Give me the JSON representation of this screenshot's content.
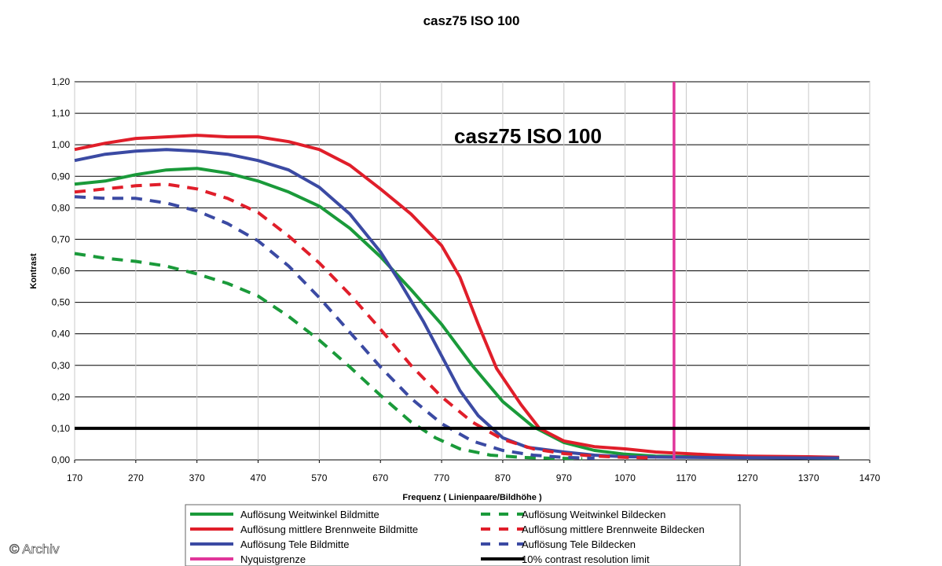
{
  "chart_data": {
    "type": "line",
    "title": "casz75 ISO 100",
    "inner_title": "casz75 ISO 100",
    "xlabel": "Frequenz ( Linienpaare/Bildhöhe )",
    "ylabel": "Kontrast",
    "xlim": [
      170,
      1470
    ],
    "ylim": [
      0,
      1.2
    ],
    "x_ticks": [
      "170",
      "270",
      "370",
      "470",
      "570",
      "670",
      "770",
      "870",
      "970",
      "1070",
      "1170",
      "1270",
      "1370",
      "1470"
    ],
    "y_ticks": [
      "0,00",
      "0,10",
      "0,20",
      "0,30",
      "0,40",
      "0,50",
      "0,60",
      "0,70",
      "0,80",
      "0,90",
      "1,00",
      "1,10",
      "1,20"
    ],
    "grid": "horizontal",
    "legend_position": "bottom",
    "series": [
      {
        "name": "Auflösung Weitwinkel Bildmitte",
        "color": "#1a9a3a",
        "dash": "solid",
        "points": [
          [
            170,
            0.875
          ],
          [
            220,
            0.885
          ],
          [
            270,
            0.905
          ],
          [
            320,
            0.92
          ],
          [
            370,
            0.925
          ],
          [
            420,
            0.91
          ],
          [
            470,
            0.885
          ],
          [
            520,
            0.85
          ],
          [
            570,
            0.805
          ],
          [
            620,
            0.735
          ],
          [
            670,
            0.645
          ],
          [
            720,
            0.54
          ],
          [
            770,
            0.43
          ],
          [
            820,
            0.3
          ],
          [
            870,
            0.185
          ],
          [
            920,
            0.105
          ],
          [
            970,
            0.055
          ],
          [
            1020,
            0.03
          ],
          [
            1070,
            0.018
          ],
          [
            1120,
            0.012
          ],
          [
            1170,
            0.01
          ],
          [
            1270,
            0.008
          ],
          [
            1370,
            0.006
          ],
          [
            1420,
            0.005
          ]
        ]
      },
      {
        "name": "Auflösung mittlere Brennweite Bildmitte",
        "color": "#e01e2a",
        "dash": "solid",
        "points": [
          [
            170,
            0.985
          ],
          [
            220,
            1.005
          ],
          [
            270,
            1.02
          ],
          [
            320,
            1.025
          ],
          [
            370,
            1.03
          ],
          [
            420,
            1.025
          ],
          [
            470,
            1.025
          ],
          [
            520,
            1.01
          ],
          [
            570,
            0.985
          ],
          [
            620,
            0.935
          ],
          [
            670,
            0.86
          ],
          [
            720,
            0.78
          ],
          [
            770,
            0.68
          ],
          [
            800,
            0.58
          ],
          [
            830,
            0.43
          ],
          [
            860,
            0.29
          ],
          [
            900,
            0.175
          ],
          [
            930,
            0.1
          ],
          [
            970,
            0.06
          ],
          [
            1020,
            0.042
          ],
          [
            1070,
            0.035
          ],
          [
            1120,
            0.025
          ],
          [
            1170,
            0.02
          ],
          [
            1220,
            0.015
          ],
          [
            1270,
            0.012
          ],
          [
            1370,
            0.01
          ],
          [
            1420,
            0.008
          ]
        ]
      },
      {
        "name": "Auflösung Tele Bildmitte",
        "color": "#3b4aa3",
        "dash": "solid",
        "points": [
          [
            170,
            0.95
          ],
          [
            220,
            0.97
          ],
          [
            270,
            0.98
          ],
          [
            320,
            0.985
          ],
          [
            370,
            0.98
          ],
          [
            420,
            0.97
          ],
          [
            470,
            0.95
          ],
          [
            520,
            0.92
          ],
          [
            570,
            0.865
          ],
          [
            620,
            0.78
          ],
          [
            670,
            0.66
          ],
          [
            700,
            0.57
          ],
          [
            740,
            0.44
          ],
          [
            770,
            0.33
          ],
          [
            800,
            0.22
          ],
          [
            830,
            0.14
          ],
          [
            870,
            0.07
          ],
          [
            910,
            0.04
          ],
          [
            970,
            0.025
          ],
          [
            1020,
            0.015
          ],
          [
            1070,
            0.01
          ],
          [
            1170,
            0.008
          ],
          [
            1270,
            0.007
          ],
          [
            1370,
            0.006
          ],
          [
            1420,
            0.006
          ]
        ]
      },
      {
        "name": "Nyquistgrenze",
        "color": "#e0369a",
        "dash": "solid",
        "points": [
          [
            1150,
            0
          ],
          [
            1150,
            1.2
          ]
        ]
      },
      {
        "name": "Auflösung Weitwinkel Bildecken",
        "color": "#1a9a3a",
        "dash": "dashed",
        "points": [
          [
            170,
            0.655
          ],
          [
            220,
            0.64
          ],
          [
            270,
            0.63
          ],
          [
            320,
            0.615
          ],
          [
            370,
            0.59
          ],
          [
            420,
            0.56
          ],
          [
            470,
            0.52
          ],
          [
            520,
            0.455
          ],
          [
            570,
            0.38
          ],
          [
            620,
            0.295
          ],
          [
            670,
            0.205
          ],
          [
            720,
            0.12
          ],
          [
            760,
            0.07
          ],
          [
            800,
            0.035
          ],
          [
            850,
            0.015
          ],
          [
            900,
            0.008
          ],
          [
            950,
            0.005
          ],
          [
            1000,
            0.004
          ]
        ]
      },
      {
        "name": "Auflösung mittlere Brennweite Bildecken",
        "color": "#e01e2a",
        "dash": "dashed",
        "points": [
          [
            170,
            0.85
          ],
          [
            220,
            0.86
          ],
          [
            270,
            0.87
          ],
          [
            320,
            0.875
          ],
          [
            370,
            0.86
          ],
          [
            420,
            0.83
          ],
          [
            470,
            0.785
          ],
          [
            520,
            0.71
          ],
          [
            570,
            0.625
          ],
          [
            620,
            0.525
          ],
          [
            670,
            0.415
          ],
          [
            720,
            0.3
          ],
          [
            770,
            0.2
          ],
          [
            820,
            0.12
          ],
          [
            870,
            0.065
          ],
          [
            920,
            0.035
          ],
          [
            970,
            0.02
          ],
          [
            1020,
            0.012
          ],
          [
            1070,
            0.008
          ],
          [
            1120,
            0.006
          ]
        ]
      },
      {
        "name": "Auflösung Tele Bildecken",
        "color": "#3b4aa3",
        "dash": "dashed",
        "points": [
          [
            170,
            0.835
          ],
          [
            220,
            0.83
          ],
          [
            270,
            0.83
          ],
          [
            320,
            0.815
          ],
          [
            370,
            0.79
          ],
          [
            420,
            0.75
          ],
          [
            470,
            0.695
          ],
          [
            520,
            0.615
          ],
          [
            570,
            0.515
          ],
          [
            620,
            0.405
          ],
          [
            670,
            0.295
          ],
          [
            720,
            0.195
          ],
          [
            770,
            0.115
          ],
          [
            820,
            0.06
          ],
          [
            870,
            0.03
          ],
          [
            920,
            0.015
          ],
          [
            970,
            0.008
          ],
          [
            1020,
            0.005
          ]
        ]
      },
      {
        "name": "10% contrast resolution limit",
        "color": "#000000",
        "dash": "solid",
        "points": [
          [
            170,
            0.1
          ],
          [
            1470,
            0.1
          ]
        ]
      }
    ]
  },
  "watermark": "© Archiv"
}
